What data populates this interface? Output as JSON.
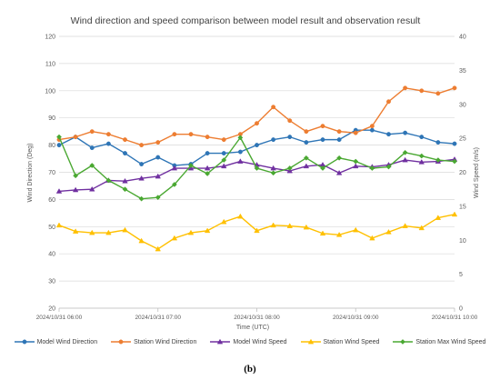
{
  "caption": "(b)",
  "chart_data": {
    "type": "line",
    "title": "Wind direction and speed comparison between model result and observation result",
    "xlabel": "Time (UTC)",
    "ylabel": "Wind Direction (Deg)",
    "y2label": "Wind Speed (m/s)",
    "ylim": [
      20,
      120
    ],
    "y2lim": [
      0,
      40
    ],
    "x_ticks": [
      "2024/10/31 06:00",
      "2024/10/31 07:00",
      "2024/10/31 08:00",
      "2024/10/31 09:00",
      "2024/10/31 10:00"
    ],
    "y_ticks": [
      20,
      30,
      40,
      50,
      60,
      70,
      80,
      90,
      100,
      110,
      120
    ],
    "y2_ticks": [
      0,
      5,
      10,
      15,
      20,
      25,
      30,
      35,
      40
    ],
    "grid": true,
    "legend_position": "bottom",
    "x_hours": [
      0,
      0.1667,
      0.3333,
      0.5,
      0.6667,
      0.8333,
      1.0,
      1.1667,
      1.3333,
      1.5,
      1.6667,
      1.8333,
      2.0,
      2.1667,
      2.3333,
      2.5,
      2.6667,
      2.8333,
      3.0,
      3.1667,
      3.3333,
      3.5,
      3.6667,
      3.8333,
      4.0
    ],
    "series": [
      {
        "name": "Model Wind Direction",
        "axis": "left",
        "color": "#2e75b6",
        "marker": "circle",
        "values": [
          80,
          83,
          79,
          80.5,
          77,
          73,
          75.5,
          72.5,
          73,
          77,
          77,
          77.5,
          80,
          82,
          83,
          81,
          82,
          82,
          85.5,
          85.5,
          84,
          84.5,
          83,
          81,
          80.5
        ]
      },
      {
        "name": "Station Wind Direction",
        "axis": "left",
        "color": "#ed7d31",
        "marker": "circle",
        "values": [
          82,
          83,
          85,
          84,
          82,
          80,
          81,
          84,
          84,
          83,
          82,
          84,
          88,
          94,
          89,
          85,
          87,
          85,
          84.5,
          87,
          96,
          101,
          100,
          99,
          101
        ]
      },
      {
        "name": "Model Wind Speed",
        "axis": "right",
        "color": "#7030a0",
        "marker": "triangle",
        "values": [
          17.2,
          17.4,
          17.5,
          18.8,
          18.7,
          19.1,
          19.4,
          20.6,
          20.6,
          20.6,
          20.9,
          21.6,
          21.1,
          20.6,
          20.2,
          20.9,
          21.1,
          19.9,
          20.9,
          20.8,
          21.1,
          21.8,
          21.5,
          21.6,
          21.9
        ]
      },
      {
        "name": "Station Wind Speed",
        "axis": "right",
        "color": "#ffc000",
        "marker": "triangle",
        "values": [
          12.2,
          11.3,
          11.1,
          11.1,
          11.5,
          9.9,
          8.7,
          10.3,
          11.1,
          11.4,
          12.7,
          13.5,
          11.4,
          12.2,
          12.1,
          11.9,
          11.0,
          10.8,
          11.5,
          10.3,
          11.2,
          12.1,
          11.8,
          13.3,
          13.8
        ]
      },
      {
        "name": "Station Max Wind Speed",
        "axis": "right",
        "color": "#4aa832",
        "marker": "diamond",
        "values": [
          25.2,
          19.5,
          21.0,
          18.8,
          17.5,
          16.1,
          16.3,
          18.2,
          21.0,
          19.8,
          21.8,
          25.1,
          20.6,
          19.9,
          20.6,
          22.1,
          20.6,
          22.1,
          21.6,
          20.6,
          20.8,
          22.9,
          22.4,
          21.8,
          21.6
        ]
      }
    ]
  }
}
